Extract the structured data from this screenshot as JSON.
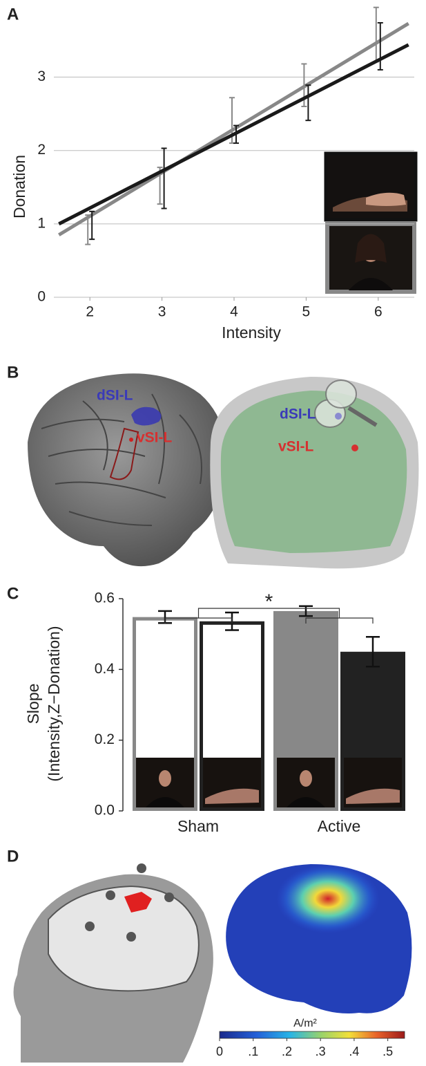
{
  "panels": [
    "A",
    "B",
    "C",
    "D"
  ],
  "chart_data": [
    {
      "type": "line",
      "xlabel": "Intensity",
      "ylabel": "Donation",
      "x": [
        2,
        3,
        4,
        5,
        6
      ],
      "xlim": [
        1.5,
        6.5
      ],
      "xticks": [
        2,
        3,
        4,
        5,
        6
      ],
      "ylim": [
        0,
        3.9
      ],
      "yticks": [
        0,
        1,
        2,
        3
      ],
      "grid": true,
      "series": [
        {
          "color": "#888888",
          "values": [
            0.92,
            1.52,
            2.41,
            2.89,
            3.58
          ],
          "errors": [
            0.2,
            0.25,
            0.31,
            0.29,
            0.37
          ],
          "fit_x": [
            1.57,
            6.42
          ],
          "fit_y": [
            0.85,
            3.73
          ]
        },
        {
          "color": "#1a1a1a",
          "values": [
            0.98,
            1.62,
            2.22,
            2.65,
            3.42
          ],
          "errors": [
            0.19,
            0.41,
            0.12,
            0.24,
            0.32
          ],
          "fit_x": [
            1.57,
            6.42
          ],
          "fit_y": [
            1.0,
            3.44
          ]
        }
      ]
    },
    {
      "type": "bar",
      "ylabel": [
        "Slope",
        "(Intensity,Z−Donation)"
      ],
      "categories": [
        "Sham",
        "Active"
      ],
      "filled": [
        false,
        true
      ],
      "ylim": [
        0,
        0.6
      ],
      "yticks": [
        {
          "value": 0,
          "label": "0.0"
        },
        {
          "value": 0.2,
          "label": "0.2"
        },
        {
          "value": 0.4,
          "label": "0.4"
        },
        {
          "value": 0.6,
          "label": "0.6"
        }
      ],
      "annotation": "*",
      "series": [
        {
          "color": "#888888",
          "values": [
            0.548,
            0.565
          ],
          "errors": [
            0.017,
            0.014
          ]
        },
        {
          "color": "#222222",
          "values": [
            0.536,
            0.45
          ],
          "errors": [
            0.025,
            0.042
          ]
        }
      ]
    }
  ],
  "brain_labels": [
    "dSI-L",
    "vSI-L"
  ],
  "colorbar": {
    "label": "A/m²",
    "lim": [
      0,
      0.55
    ],
    "ticks": [
      {
        "value": 0,
        "label": "0"
      },
      {
        "value": 0.1,
        "label": ".1"
      },
      {
        "value": 0.2,
        "label": ".2"
      },
      {
        "value": 0.3,
        "label": ".3"
      },
      {
        "value": 0.4,
        "label": ".4"
      },
      {
        "value": 0.5,
        "label": ".5"
      }
    ]
  }
}
